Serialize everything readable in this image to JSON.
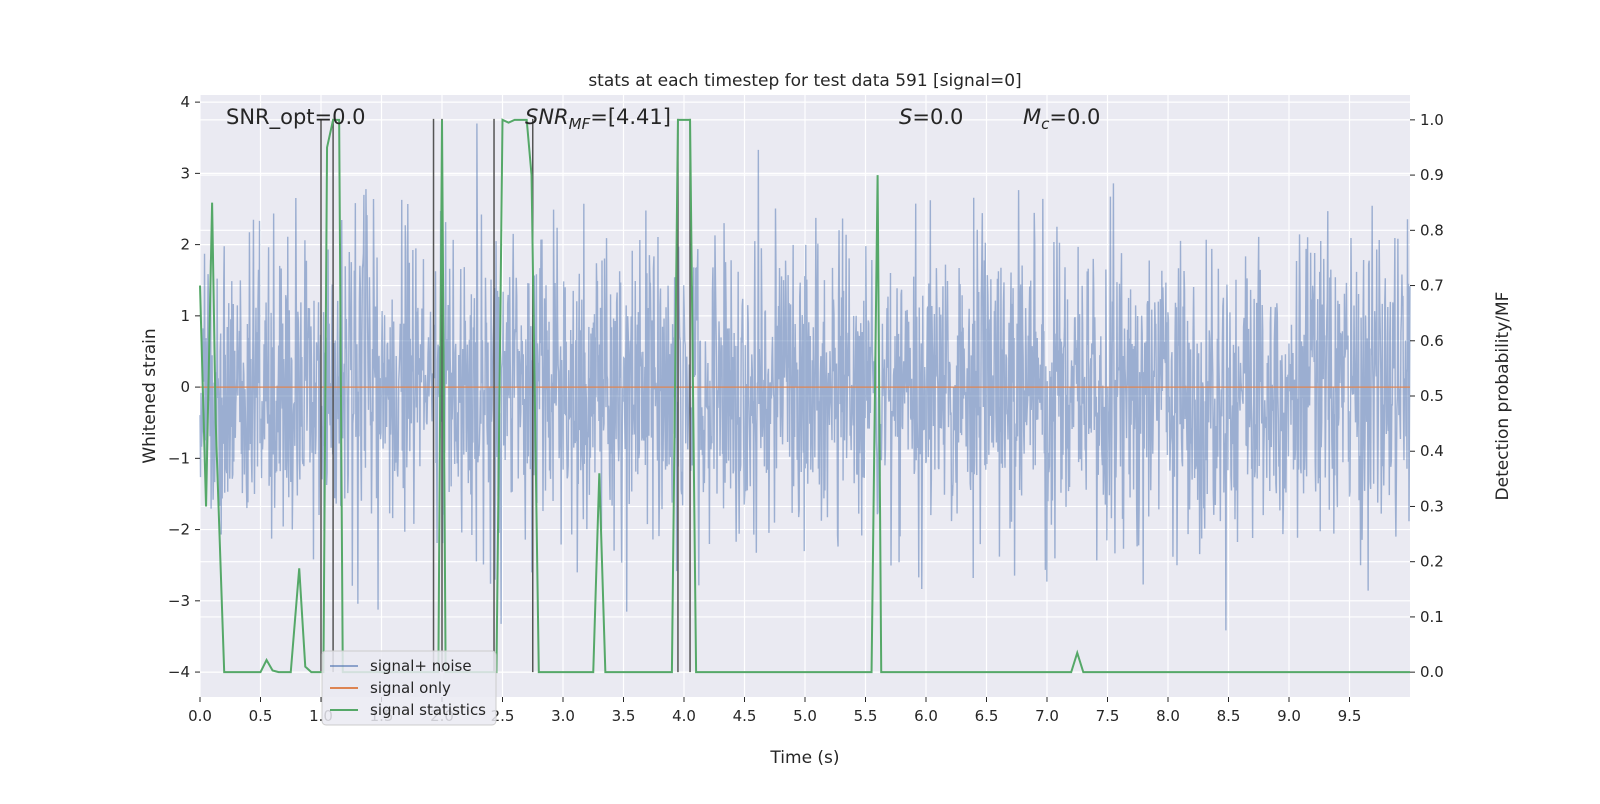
{
  "chart_data": {
    "type": "line",
    "title": "stats at each timestep for test data 591 [signal=0]",
    "xlabel": "Time (s)",
    "ylabel_left": "Whitened strain",
    "ylabel_right": "Detection probability/MF",
    "xlim": [
      0.0,
      10.0
    ],
    "ylim_left": [
      -4.35,
      4.1
    ],
    "ylim_right": [
      -0.045,
      1.045
    ],
    "x_ticks": [
      "0.0",
      "0.5",
      "1.0",
      "1.5",
      "2.0",
      "2.5",
      "3.0",
      "3.5",
      "4.0",
      "4.5",
      "5.0",
      "5.5",
      "6.0",
      "6.5",
      "7.0",
      "7.5",
      "8.0",
      "8.5",
      "9.0",
      "9.5"
    ],
    "y_ticks_left": [
      "−4",
      "−3",
      "−2",
      "−1",
      "0",
      "1",
      "2",
      "3",
      "4"
    ],
    "y_ticks_right": [
      "0.0",
      "0.1",
      "0.2",
      "0.3",
      "0.4",
      "0.5",
      "0.6",
      "0.7",
      "0.8",
      "0.9",
      "1.0"
    ],
    "grid": true,
    "legend_position": "lower-left",
    "annotations": {
      "snr_opt": "SNR_opt=0.0",
      "snr_mf": "=[4.41]",
      "s_val": "=0.0",
      "mc_val": "=0.0"
    },
    "colors": {
      "background": "#eaeaf2",
      "grid": "#ffffff",
      "noise": "#4c72b0",
      "signal_only": "#dd8452",
      "statistics": "#55a868",
      "marker_lines": "#555555"
    },
    "series": [
      {
        "name": "signal+ noise",
        "description_level": "dense whitened noise, amplitude mostly within ±2.5, peaks to about ±3.7",
        "amplitude_envelope": 2.6
      },
      {
        "name": "signal only",
        "x": [
          0.0,
          10.0
        ],
        "y": [
          0.0,
          0.0
        ]
      },
      {
        "name": "signal statistics",
        "x": [
          0.0,
          0.05,
          0.1,
          0.13,
          0.2,
          0.25,
          0.3,
          0.37,
          0.45,
          0.5,
          0.55,
          0.6,
          0.65,
          0.75,
          0.82,
          0.87,
          0.92,
          0.97,
          1.02,
          1.05,
          1.1,
          1.15,
          1.18,
          1.22,
          1.3,
          1.5,
          1.7,
          1.9,
          1.97,
          2.0,
          2.03,
          2.1,
          2.3,
          2.45,
          2.5,
          2.55,
          2.6,
          2.65,
          2.7,
          2.74,
          2.8,
          2.85,
          3.0,
          3.15,
          3.25,
          3.3,
          3.35,
          3.4,
          3.6,
          3.9,
          3.95,
          4.0,
          4.05,
          4.1,
          4.3,
          5.0,
          5.55,
          5.6,
          5.63,
          5.67,
          6.0,
          6.5,
          7.0,
          7.2,
          7.25,
          7.3,
          8.0,
          9.0,
          10.0
        ],
        "y": [
          0.7,
          0.3,
          0.85,
          0.45,
          0.0,
          0.0,
          0.0,
          0.0,
          0.0,
          0.0,
          0.022,
          0.003,
          0.0,
          0.0,
          0.188,
          0.01,
          0.0,
          0.0,
          0.0,
          0.95,
          1.0,
          1.0,
          0.0,
          0.0,
          0.0,
          0.0,
          0.0,
          0.0,
          0.0,
          1.0,
          0.0,
          0.0,
          0.0,
          0.0,
          1.0,
          0.995,
          1.0,
          1.0,
          1.0,
          0.9,
          0.0,
          0.0,
          0.0,
          0.0,
          0.0,
          0.36,
          0.0,
          0.0,
          0.0,
          0.0,
          1.0,
          1.0,
          1.0,
          0.0,
          0.0,
          0.0,
          0.0,
          0.9,
          0.0,
          0.0,
          0.0,
          0.0,
          0.0,
          0.0,
          0.035,
          0.0,
          0.0,
          0.0,
          0.0
        ]
      }
    ],
    "marker_lines_x": [
      1.0,
      1.1,
      1.93,
      2.0,
      2.43,
      2.75,
      3.95,
      4.05
    ]
  },
  "legend": {
    "items": [
      "signal+ noise",
      "signal only",
      "signal statistics"
    ]
  }
}
